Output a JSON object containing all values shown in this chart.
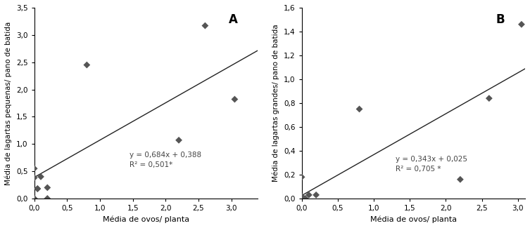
{
  "plot_A": {
    "x": [
      0.0,
      0.0,
      0.0,
      0.0,
      0.05,
      0.05,
      0.1,
      0.2,
      0.2,
      0.8,
      2.2,
      2.6,
      3.05
    ],
    "y": [
      0.0,
      0.0,
      0.38,
      0.55,
      0.18,
      0.18,
      0.4,
      0.2,
      0.0,
      2.45,
      1.07,
      3.17,
      1.82
    ],
    "slope": 0.684,
    "intercept": 0.388,
    "r2": 0.501,
    "xlabel": "Média de ovos/ planta",
    "ylabel": "Média de lagartas pequenas/ pano de batida",
    "label": "A",
    "xlim": [
      0,
      3.4
    ],
    "ylim": [
      0,
      3.5
    ],
    "xticks": [
      0.0,
      0.5,
      1.0,
      1.5,
      2.0,
      2.5,
      3.0
    ],
    "yticks": [
      0.0,
      0.5,
      1.0,
      1.5,
      2.0,
      2.5,
      3.0,
      3.5
    ],
    "eq_text": "y = 0,684x + 0,388\nR² = 0,501*",
    "eq_x": 1.45,
    "eq_y": 0.55
  },
  "plot_B": {
    "x": [
      0.0,
      0.0,
      0.0,
      0.05,
      0.1,
      0.2,
      0.8,
      2.2,
      2.6,
      3.05
    ],
    "y": [
      0.0,
      0.02,
      0.18,
      0.0,
      0.03,
      0.03,
      0.75,
      0.16,
      0.84,
      1.46
    ],
    "slope": 0.343,
    "intercept": 0.025,
    "r2": 0.705,
    "xlabel": "Média de ovos/ planta",
    "ylabel": "Média de lagartas grandes/ pano de batida",
    "label": "B",
    "xlim": [
      0,
      3.1
    ],
    "ylim": [
      0,
      1.6
    ],
    "xticks": [
      0.0,
      0.5,
      1.0,
      1.5,
      2.0,
      2.5,
      3.0
    ],
    "yticks": [
      0.0,
      0.2,
      0.4,
      0.6,
      0.8,
      1.0,
      1.2,
      1.4,
      1.6
    ],
    "eq_text": "y = 0,343x + 0,025\nR² = 0,705 *",
    "eq_x": 1.3,
    "eq_y": 0.22
  },
  "marker_color": "#555555",
  "line_color": "#222222",
  "marker_size": 5,
  "font_size": 7.5,
  "label_font_size": 8,
  "ylabel_font_size": 7.5,
  "tick_font_size": 7.5
}
